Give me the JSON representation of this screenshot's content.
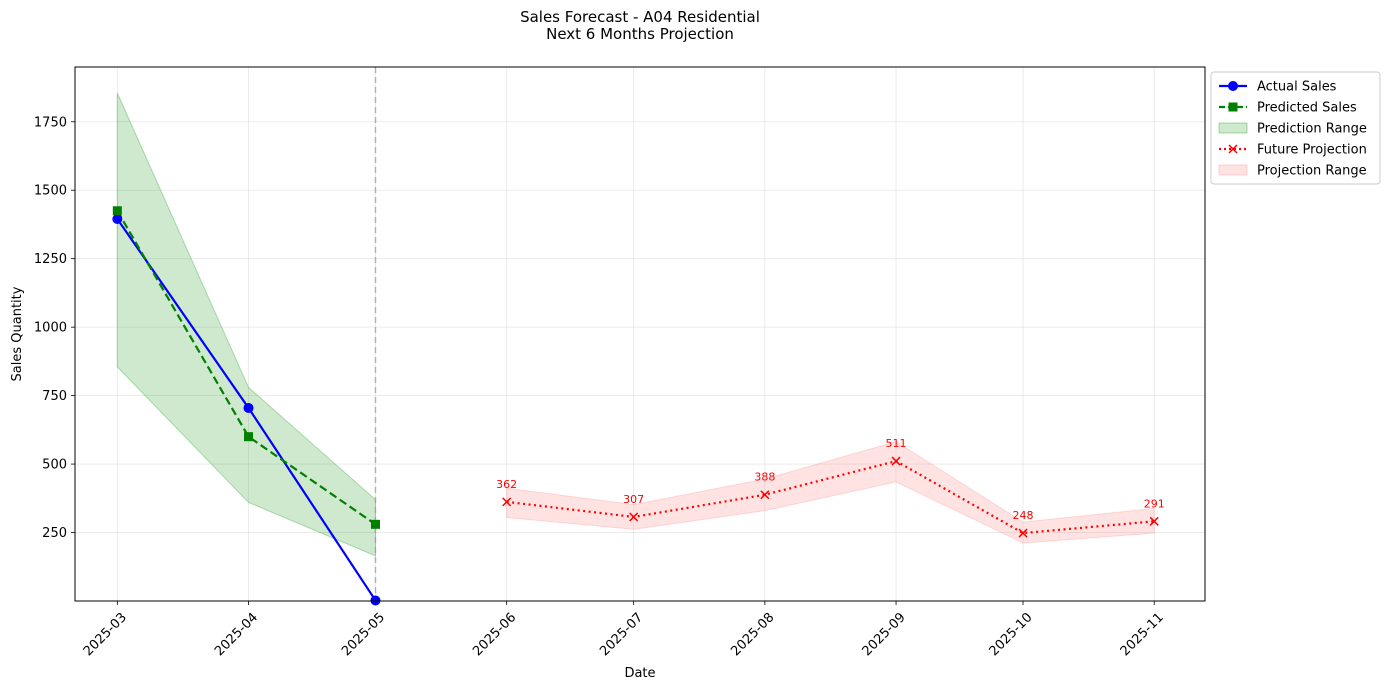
{
  "chart_data": {
    "type": "line",
    "title": "Sales Forecast - A04 Residential",
    "subtitle": "Next 6 Months Projection",
    "xlabel": "Date",
    "ylabel": "Sales Quantity",
    "x_ticks": [
      "2025-03",
      "2025-04",
      "2025-05",
      "2025-06",
      "2025-07",
      "2025-08",
      "2025-09",
      "2025-10",
      "2025-11"
    ],
    "y_ticks": [
      250,
      500,
      750,
      1000,
      1250,
      1500,
      1750
    ],
    "ylim": [
      0,
      1950
    ],
    "xlim": [
      "2025-02-19",
      "2025-11-13"
    ],
    "grid": true,
    "legend_position": "outside-top-right",
    "divider_x": "2025-05",
    "series": [
      {
        "name": "Actual Sales",
        "style": "solid-line-circle-markers",
        "color": "#0000ff",
        "x": [
          "2025-03",
          "2025-04",
          "2025-05"
        ],
        "values": [
          1395,
          705,
          2
        ]
      },
      {
        "name": "Predicted Sales",
        "style": "dashed-line-square-markers",
        "color": "#008000",
        "x": [
          "2025-03",
          "2025-04",
          "2025-05"
        ],
        "values": [
          1425,
          600,
          280
        ]
      },
      {
        "name": "Prediction Range",
        "style": "band",
        "color": "#2ca02c",
        "x": [
          "2025-03",
          "2025-04",
          "2025-05"
        ],
        "lower": [
          855,
          360,
          165
        ],
        "upper": [
          1855,
          780,
          370
        ]
      },
      {
        "name": "Future Projection",
        "style": "dotted-line-x-markers",
        "color": "#ff0000",
        "x": [
          "2025-06",
          "2025-07",
          "2025-08",
          "2025-09",
          "2025-10",
          "2025-11"
        ],
        "values": [
          362,
          307,
          388,
          511,
          248,
          291
        ]
      },
      {
        "name": "Projection Range",
        "style": "band",
        "color": "#ff9999",
        "x": [
          "2025-06",
          "2025-07",
          "2025-08",
          "2025-09",
          "2025-10",
          "2025-11"
        ],
        "lower": [
          305,
          262,
          330,
          435,
          212,
          248
        ],
        "upper": [
          412,
          352,
          445,
          582,
          288,
          338
        ]
      }
    ],
    "data_labels": [
      "362",
      "307",
      "388",
      "511",
      "248",
      "291"
    ]
  }
}
